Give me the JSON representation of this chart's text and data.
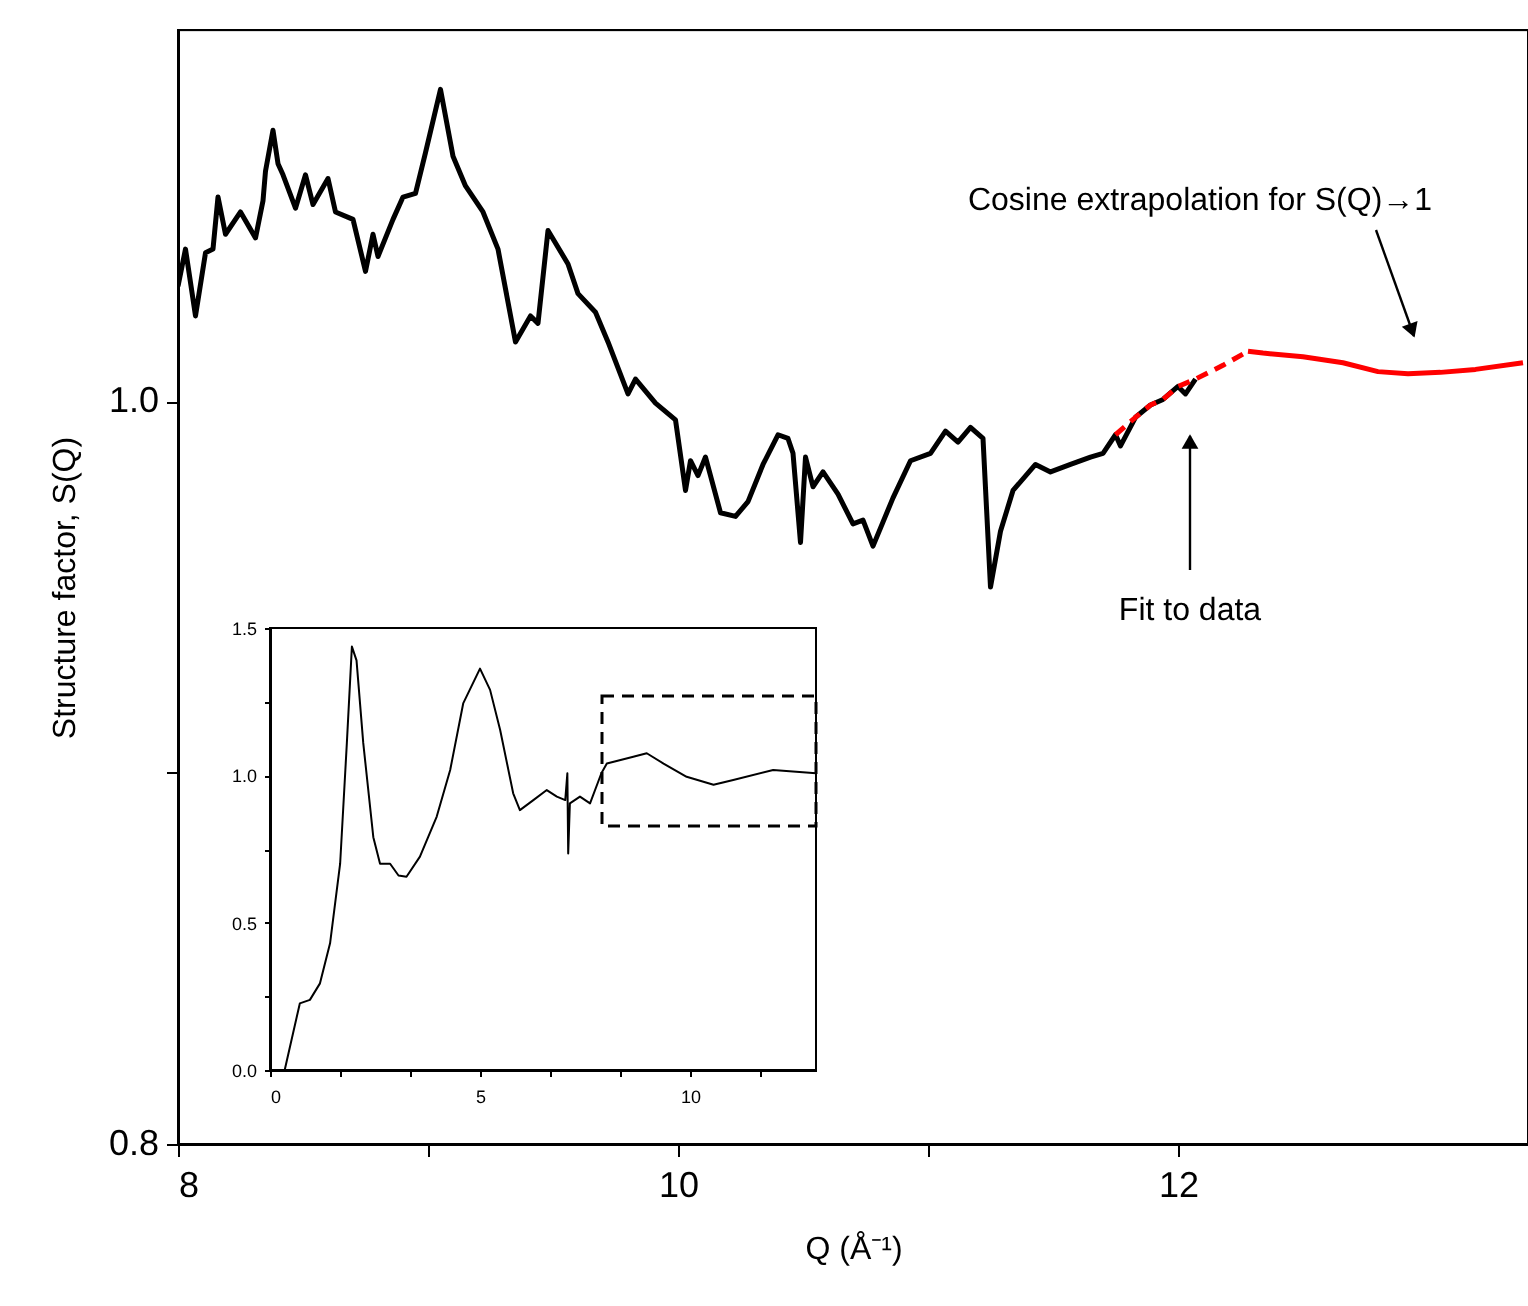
{
  "chart_data": [
    {
      "type": "line",
      "xlabel": "Q (Å⁻¹)",
      "ylabel": "Structure factor, S(Q)",
      "xlim": [
        8,
        13.4
      ],
      "ylim": [
        0.8,
        1.1
      ],
      "xticks": [
        8,
        {
          "value": 9,
          "label": null
        },
        10,
        {
          "value": 11,
          "label": null
        },
        12
      ],
      "yticks": [
        0.8,
        {
          "value": 0.9,
          "label": null
        },
        {
          "value": 1.0,
          "label": "1.0"
        }
      ],
      "grid": false,
      "line_style": "solid",
      "marker": "none",
      "series": [
        {
          "color": "#000000",
          "x": [
            8.0,
            8.03,
            8.07,
            8.11,
            8.14,
            8.16,
            8.19,
            8.25,
            8.31,
            8.34,
            8.35,
            8.38,
            8.4,
            8.42,
            8.47,
            8.51,
            8.54,
            8.6,
            8.63,
            8.7,
            8.75,
            8.78,
            8.8,
            8.86,
            8.9,
            8.95,
            8.99,
            9.05,
            9.1,
            9.15,
            9.22,
            9.28,
            9.35,
            9.41,
            9.44,
            9.48,
            9.56,
            9.6,
            9.67,
            9.72,
            9.8,
            9.83,
            9.91,
            9.99,
            10.03,
            10.05,
            10.08,
            10.11,
            10.17,
            10.23,
            10.28,
            10.34,
            10.4,
            10.44,
            10.46,
            10.49,
            10.51,
            10.54,
            10.58,
            10.64,
            10.7,
            10.74,
            10.78,
            10.86,
            10.93,
            11.01,
            11.07,
            11.12,
            11.17,
            11.22,
            11.25,
            11.29,
            11.34,
            11.43,
            11.49,
            11.57,
            11.65,
            11.7,
            11.75,
            11.77,
            11.83,
            11.89,
            11.94,
            12.0,
            12.03,
            12.07
          ],
          "values": [
            1.031,
            1.041,
            1.023,
            1.04,
            1.041,
            1.055,
            1.045,
            1.051,
            1.044,
            1.054,
            1.062,
            1.073,
            1.064,
            1.061,
            1.052,
            1.061,
            1.053,
            1.06,
            1.051,
            1.049,
            1.035,
            1.045,
            1.039,
            1.049,
            1.055,
            1.056,
            1.067,
            1.084,
            1.066,
            1.058,
            1.051,
            1.041,
            1.016,
            1.023,
            1.021,
            1.046,
            1.037,
            1.029,
            1.024,
            1.016,
            1.002,
            1.006,
            0.9995,
            0.995,
            0.976,
            0.984,
            0.98,
            0.985,
            0.97,
            0.969,
            0.973,
            0.983,
            0.991,
            0.99,
            0.986,
            0.962,
            0.985,
            0.977,
            0.981,
            0.975,
            0.967,
            0.968,
            0.961,
            0.974,
            0.984,
            0.986,
            0.992,
            0.989,
            0.993,
            0.99,
            0.95,
            0.965,
            0.976,
            0.983,
            0.981,
            0.983,
            0.985,
            0.986,
            0.991,
            0.988,
            0.9957,
            0.999,
            1.0005,
            1.004,
            1.002,
            1.006
          ]
        },
        {
          "color": "#ff0000",
          "line_style": "dashed",
          "x": [
            11.75,
            11.83,
            11.89,
            11.94,
            12.0,
            12.07,
            12.18,
            12.28
          ],
          "values": [
            0.991,
            0.9957,
            0.999,
            1.0005,
            1.004,
            1.006,
            1.0097,
            1.0135
          ]
        },
        {
          "color": "#ff0000",
          "line_style": "solid",
          "x": [
            12.28,
            12.34,
            12.5,
            12.66,
            12.8,
            12.92,
            13.05,
            13.19,
            13.38
          ],
          "values": [
            1.0135,
            1.013,
            1.012,
            1.0104,
            1.008,
            1.0074,
            1.0078,
            1.0086,
            1.0104
          ]
        }
      ],
      "annotations": [
        "Fit to data",
        "Cosine extrapolation for S(Q)→1"
      ]
    },
    {
      "type": "line",
      "xlim": [
        0,
        13
      ],
      "ylim": [
        0,
        1.5
      ],
      "xticks": [
        0,
        {
          "value": 1.67,
          "label": null
        },
        {
          "value": 3.33,
          "label": null
        },
        5,
        {
          "value": 6.67,
          "label": null
        },
        {
          "value": 8.33,
          "label": null
        },
        10,
        {
          "value": 11.67,
          "label": null
        }
      ],
      "yticks": [
        {
          "value": 0,
          "label": "0.0"
        },
        {
          "value": 0.25,
          "label": null
        },
        {
          "value": 0.5,
          "label": "0.5"
        },
        {
          "value": 0.75,
          "label": null
        },
        {
          "value": 1.0,
          "label": "1.0"
        },
        {
          "value": 1.25,
          "label": null
        },
        {
          "value": 1.5,
          "label": "1.5"
        }
      ],
      "grid": false,
      "line_style": "solid",
      "marker": "none",
      "series": [
        {
          "color": "#000000",
          "x": [
            0.35,
            0.71,
            0.95,
            1.19,
            1.43,
            1.67,
            1.83,
            1.95,
            2.06,
            2.22,
            2.46,
            2.62,
            2.86,
            3.06,
            3.25,
            3.57,
            3.97,
            4.29,
            4.6,
            5.0,
            5.24,
            5.48,
            5.79,
            5.95,
            6.27,
            6.59,
            6.83,
            7.03,
            7.08,
            7.1,
            7.14,
            7.38,
            7.62,
            7.89,
            8.02,
            8.65,
            8.97,
            9.37,
            9.92,
            10.56,
            11.03,
            11.98,
            13.0
          ],
          "values": [
            0,
            0.226,
            0.238,
            0.294,
            0.43,
            0.7,
            1.11,
            1.437,
            1.39,
            1.11,
            0.79,
            0.7,
            0.7,
            0.66,
            0.656,
            0.724,
            0.86,
            1.018,
            1.244,
            1.362,
            1.29,
            1.154,
            0.939,
            0.882,
            0.916,
            0.95,
            0.928,
            0.916,
            1.007,
            0.735,
            0.905,
            0.928,
            0.905,
            1.007,
            1.04,
            1.063,
            1.075,
            1.04,
            0.995,
            0.968,
            0.984,
            1.018,
            1.007
          ]
        }
      ]
    }
  ]
}
